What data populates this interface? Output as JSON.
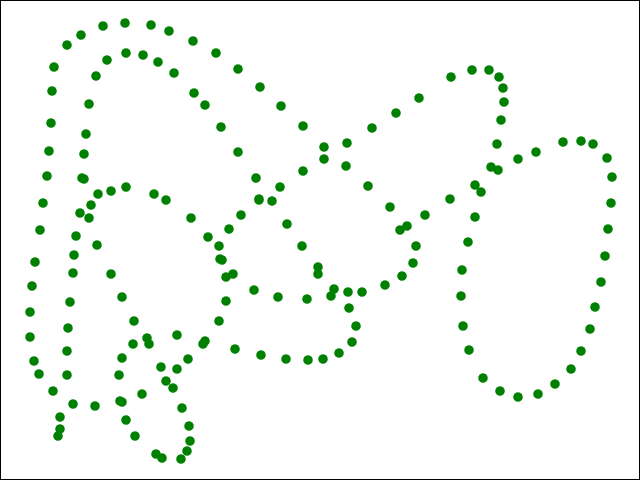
{
  "colors": {
    "background": "#ffffff",
    "border": "#000000",
    "dot": "#008000"
  }
}
